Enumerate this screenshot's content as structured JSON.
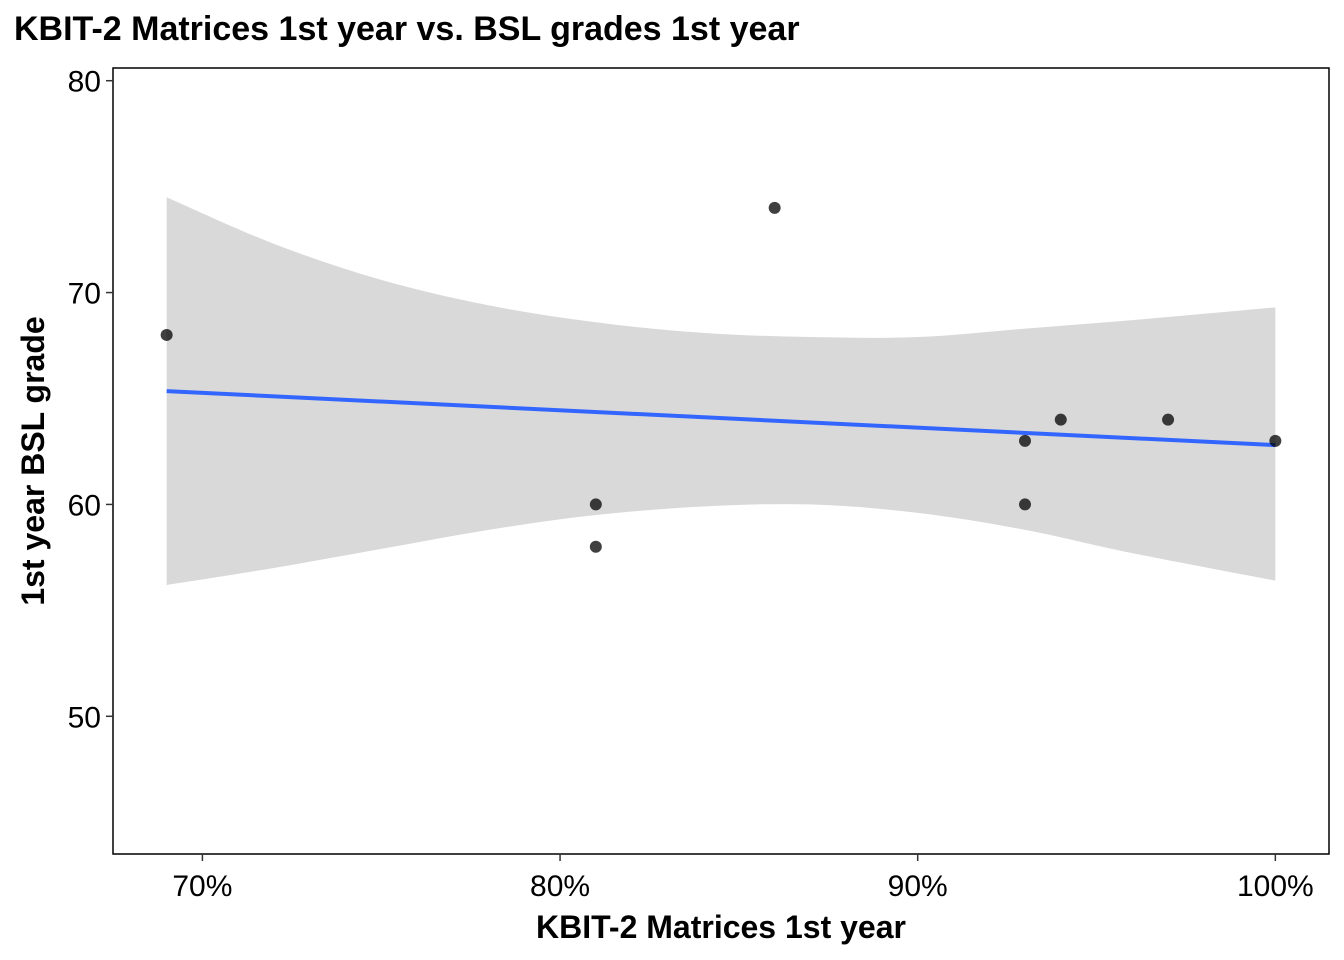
{
  "chart_data": {
    "type": "scatter",
    "title": "KBIT-2 Matrices 1st year vs. BSL grades 1st year",
    "xlabel": "KBIT-2 Matrices 1st year",
    "ylabel": "1st year BSL grade",
    "xlim": [
      0.675,
      1.015
    ],
    "ylim": [
      43.5,
      80.6
    ],
    "x_ticks": [
      0.7,
      0.8,
      0.9,
      1.0
    ],
    "x_tick_labels": [
      "70%",
      "80%",
      "90%",
      "100%"
    ],
    "y_ticks": [
      50,
      60,
      70,
      80
    ],
    "y_tick_labels": [
      "50",
      "60",
      "70",
      "80"
    ],
    "grid": false,
    "points": [
      {
        "x": 0.69,
        "y": 68
      },
      {
        "x": 0.81,
        "y": 60
      },
      {
        "x": 0.81,
        "y": 58
      },
      {
        "x": 0.86,
        "y": 74
      },
      {
        "x": 0.93,
        "y": 63
      },
      {
        "x": 0.93,
        "y": 60
      },
      {
        "x": 0.94,
        "y": 64
      },
      {
        "x": 0.97,
        "y": 64
      },
      {
        "x": 1.0,
        "y": 63
      }
    ],
    "trend_line": {
      "method": "linear",
      "color": "#3366ff",
      "x": [
        0.69,
        1.0
      ],
      "y": [
        65.35,
        62.8
      ]
    },
    "confidence_band": {
      "color": "#d9d9d9",
      "x": [
        0.69,
        0.72,
        0.75,
        0.78,
        0.81,
        0.84,
        0.87,
        0.9,
        0.93,
        0.96,
        1.0
      ],
      "upper": [
        74.5,
        72.3,
        70.6,
        69.4,
        68.6,
        68.1,
        67.9,
        67.9,
        68.3,
        68.7,
        69.3
      ],
      "lower": [
        56.2,
        57.0,
        57.9,
        58.8,
        59.5,
        59.9,
        60.0,
        59.6,
        58.8,
        57.7,
        56.4
      ]
    }
  }
}
